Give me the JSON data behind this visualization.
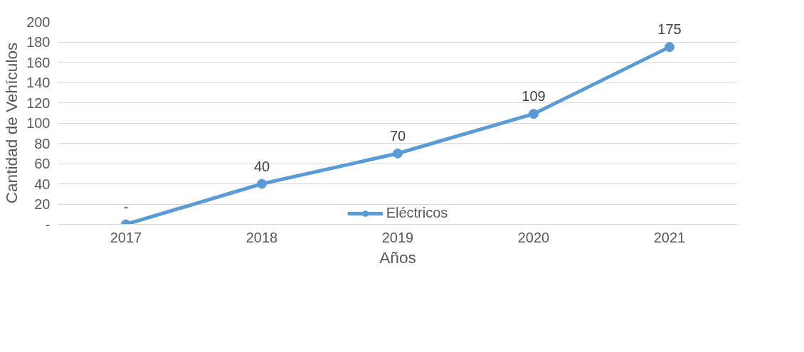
{
  "chart_data": {
    "type": "line",
    "xlabel": "Años",
    "ylabel": "Cantidad de Vehículos",
    "categories": [
      "2017",
      "2018",
      "2019",
      "2020",
      "2021"
    ],
    "series": [
      {
        "name": "Eléctricos",
        "color": "#5b9bd5",
        "values": [
          0,
          40,
          70,
          109,
          175
        ],
        "value_labels": [
          "-",
          "40",
          "70",
          "109",
          "175"
        ]
      }
    ],
    "ylim": [
      0,
      200
    ],
    "yticks": [
      {
        "value": 0,
        "label": "-"
      },
      20,
      40,
      60,
      80,
      100,
      120,
      140,
      160,
      180,
      200
    ],
    "grid": "y",
    "legend": "bottom",
    "marker": "circle",
    "line_style": "solid"
  }
}
